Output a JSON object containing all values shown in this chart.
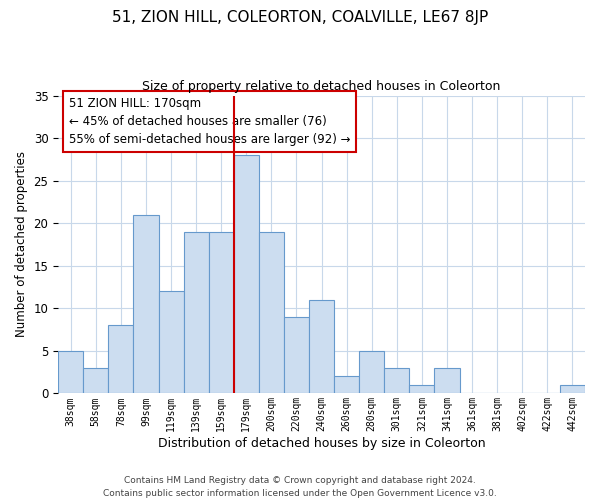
{
  "title": "51, ZION HILL, COLEORTON, COALVILLE, LE67 8JP",
  "subtitle": "Size of property relative to detached houses in Coleorton",
  "xlabel": "Distribution of detached houses by size in Coleorton",
  "ylabel": "Number of detached properties",
  "bar_labels": [
    "38sqm",
    "58sqm",
    "78sqm",
    "99sqm",
    "119sqm",
    "139sqm",
    "159sqm",
    "179sqm",
    "200sqm",
    "220sqm",
    "240sqm",
    "260sqm",
    "280sqm",
    "301sqm",
    "321sqm",
    "341sqm",
    "361sqm",
    "381sqm",
    "402sqm",
    "422sqm",
    "442sqm"
  ],
  "bar_values": [
    5,
    3,
    8,
    21,
    12,
    19,
    19,
    28,
    19,
    9,
    11,
    2,
    5,
    3,
    1,
    3,
    0,
    0,
    0,
    0,
    1
  ],
  "bar_color": "#ccddf0",
  "bar_edge_color": "#6699cc",
  "vline_color": "#cc0000",
  "annotation_box_text": "51 ZION HILL: 170sqm\n← 45% of detached houses are smaller (76)\n55% of semi-detached houses are larger (92) →",
  "ylim": [
    0,
    35
  ],
  "yticks": [
    0,
    5,
    10,
    15,
    20,
    25,
    30,
    35
  ],
  "footer_line1": "Contains HM Land Registry data © Crown copyright and database right 2024.",
  "footer_line2": "Contains public sector information licensed under the Open Government Licence v3.0.",
  "bg_color": "#ffffff",
  "grid_color": "#c8d8ea"
}
